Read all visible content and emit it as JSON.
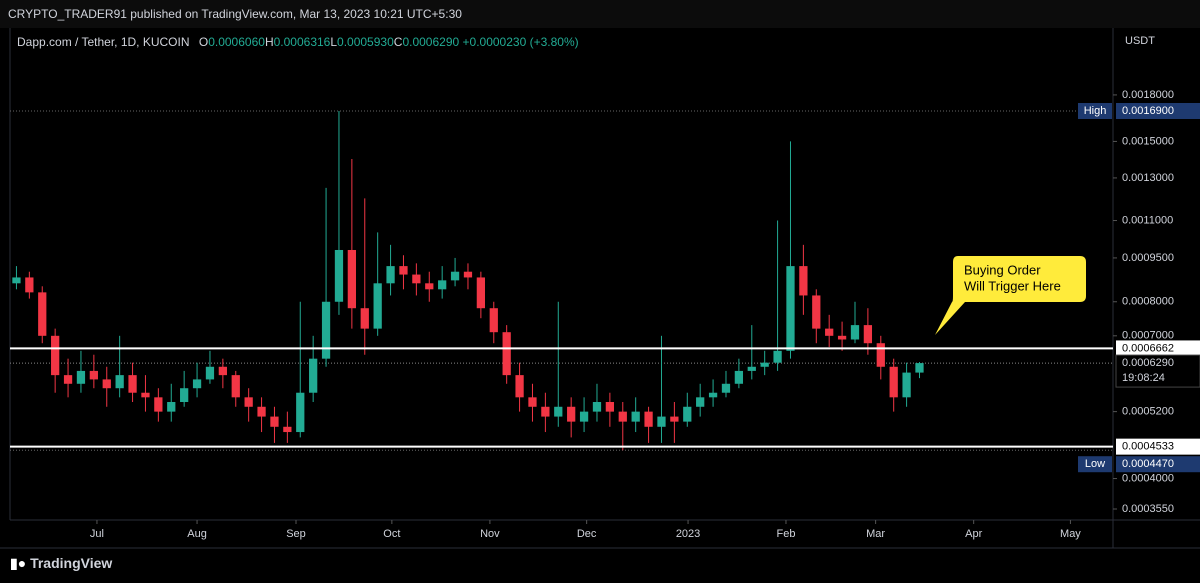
{
  "header": {
    "author_line": "CRYPTO_TRADER91 published on TradingView.com, Mar 13, 2023 10:21 UTC+5:30",
    "symbol": "Dapp.com / Tether, 1D, KUCOIN",
    "ohlc": [
      {
        "key": "O",
        "text": "0.0006060"
      },
      {
        "key": "H",
        "text": "0.0006316"
      },
      {
        "key": "L",
        "text": "0.0005930"
      },
      {
        "key": "C",
        "text": "0.0006290"
      }
    ],
    "change": "+0.0000230 (+3.80%)"
  },
  "footer": {
    "brand": "TradingView"
  },
  "chart_data": {
    "type": "candlestick",
    "y_unit": "USDT",
    "log_scale": true,
    "grid": false,
    "up_color": "#22ab94",
    "down_color": "#f23645",
    "open": [
      0.00086,
      0.00088,
      0.00083,
      0.0007,
      0.0006,
      0.00058,
      0.00061,
      0.00059,
      0.00057,
      0.0006,
      0.00056,
      0.00055,
      0.00052,
      0.00054,
      0.00057,
      0.00059,
      0.00062,
      0.0006,
      0.00055,
      0.00053,
      0.00051,
      0.00049,
      0.00048,
      0.00056,
      0.00064,
      0.0008,
      0.00098,
      0.00078,
      0.00072,
      0.00086,
      0.00092,
      0.00089,
      0.00086,
      0.00084,
      0.00087,
      0.0009,
      0.00088,
      0.00078,
      0.00071,
      0.0006,
      0.00055,
      0.00053,
      0.00051,
      0.00053,
      0.0005,
      0.00052,
      0.00054,
      0.00052,
      0.0005,
      0.00052,
      0.00049,
      0.00051,
      0.0005,
      0.00053,
      0.00055,
      0.00056,
      0.00058,
      0.00061,
      0.00062,
      0.00063,
      0.00066,
      0.00092,
      0.00082,
      0.00072,
      0.0007,
      0.00069,
      0.00073,
      0.00068,
      0.00062,
      0.00055,
      0.000606
    ],
    "high": [
      0.00092,
      0.0009,
      0.00085,
      0.00072,
      0.00064,
      0.00066,
      0.00065,
      0.00062,
      0.0007,
      0.00063,
      0.0006,
      0.00057,
      0.00058,
      0.00061,
      0.00063,
      0.00066,
      0.00064,
      0.00061,
      0.00057,
      0.00055,
      0.00053,
      0.00052,
      0.0008,
      0.0007,
      0.00125,
      0.00169,
      0.0014,
      0.0012,
      0.00105,
      0.001,
      0.00096,
      0.00093,
      0.0009,
      0.00092,
      0.00095,
      0.00093,
      0.0009,
      0.0008,
      0.00073,
      0.00063,
      0.00058,
      0.00056,
      0.0008,
      0.00055,
      0.00055,
      0.00058,
      0.00056,
      0.00054,
      0.00055,
      0.00053,
      0.0007,
      0.00054,
      0.00056,
      0.00058,
      0.00059,
      0.00061,
      0.00064,
      0.00073,
      0.00066,
      0.0011,
      0.0015,
      0.001,
      0.00084,
      0.00076,
      0.00074,
      0.0008,
      0.00078,
      0.0007,
      0.00064,
      0.00063,
      0.0006316
    ],
    "low": [
      0.00084,
      0.00081,
      0.00068,
      0.00056,
      0.00055,
      0.00056,
      0.00057,
      0.00053,
      0.00055,
      0.00054,
      0.00052,
      0.0005,
      0.0005,
      0.00053,
      0.00055,
      0.00058,
      0.00057,
      0.00053,
      0.0005,
      0.00048,
      0.00046,
      0.00046,
      0.00047,
      0.00054,
      0.00062,
      0.00076,
      0.00072,
      0.00065,
      0.0007,
      0.00082,
      0.00084,
      0.00082,
      0.0008,
      0.00081,
      0.00085,
      0.00084,
      0.00075,
      0.00068,
      0.00058,
      0.00052,
      0.0005,
      0.00048,
      0.00049,
      0.00047,
      0.00048,
      0.0005,
      0.00049,
      0.000447,
      0.00048,
      0.00046,
      0.00046,
      0.00046,
      0.00049,
      0.00051,
      0.00053,
      0.00055,
      0.00057,
      0.00059,
      0.0006,
      0.00061,
      0.00064,
      0.00076,
      0.00068,
      0.00067,
      0.00066,
      0.00068,
      0.00065,
      0.00059,
      0.00052,
      0.00053,
      0.000593
    ],
    "close": [
      0.00088,
      0.00083,
      0.0007,
      0.0006,
      0.00058,
      0.00061,
      0.00059,
      0.00057,
      0.0006,
      0.00056,
      0.00055,
      0.00052,
      0.00054,
      0.00057,
      0.00059,
      0.00062,
      0.0006,
      0.00055,
      0.00053,
      0.00051,
      0.00049,
      0.00048,
      0.00056,
      0.00064,
      0.0008,
      0.00098,
      0.00078,
      0.00072,
      0.00086,
      0.00092,
      0.00089,
      0.00086,
      0.00084,
      0.00087,
      0.0009,
      0.00088,
      0.00078,
      0.00071,
      0.0006,
      0.00055,
      0.00053,
      0.00051,
      0.00053,
      0.0005,
      0.00052,
      0.00054,
      0.00052,
      0.0005,
      0.00052,
      0.00049,
      0.00051,
      0.0005,
      0.00053,
      0.00055,
      0.00056,
      0.00058,
      0.00061,
      0.00062,
      0.00063,
      0.00066,
      0.00092,
      0.00082,
      0.00072,
      0.0007,
      0.00069,
      0.00073,
      0.00068,
      0.00062,
      0.00055,
      0.000606,
      0.000629
    ],
    "xlim": [
      -0.5,
      85
    ],
    "xticks": [
      {
        "value": 6.24,
        "label": "Jul"
      },
      {
        "value": 14.0,
        "label": "Aug"
      },
      {
        "value": 21.67,
        "label": "Sep"
      },
      {
        "value": 29.1,
        "label": "Oct"
      },
      {
        "value": 36.7,
        "label": "Nov"
      },
      {
        "value": 44.2,
        "label": "Dec"
      },
      {
        "value": 52.06,
        "label": "2023"
      },
      {
        "value": 59.65,
        "label": "Feb"
      },
      {
        "value": 66.6,
        "label": "Mar"
      },
      {
        "value": 74.2,
        "label": "Apr"
      },
      {
        "value": 81.7,
        "label": "May"
      }
    ],
    "ylim": [
      0.00034,
      0.00234
    ],
    "yticks": [
      {
        "value": 0.0018,
        "label": "0.0018000"
      },
      {
        "value": 0.0015,
        "label": "0.0015000"
      },
      {
        "value": 0.0013,
        "label": "0.0013000"
      },
      {
        "value": 0.0011,
        "label": "0.0011000"
      },
      {
        "value": 0.00095,
        "label": "0.0009500"
      },
      {
        "value": 0.0008,
        "label": "0.0008000"
      },
      {
        "value": 0.0007,
        "label": "0.0007000"
      },
      {
        "value": 0.00052,
        "label": "0.0005200"
      },
      {
        "value": 0.0004,
        "label": "0.0004000"
      },
      {
        "value": 0.000355,
        "label": "0.0003550"
      }
    ],
    "high_marker": {
      "name": "High",
      "value": 0.00169,
      "label": "0.0016900"
    },
    "low_marker": {
      "name": "Low",
      "value": 0.000447,
      "label": "0.0004470"
    },
    "levels": [
      0.0006662,
      0.0004533
    ],
    "last_price": {
      "value": 0.000629,
      "label": "0.0006290",
      "countdown": "19:08:24"
    },
    "annotation": {
      "lines": [
        "Buying Order",
        "Will Trigger Here"
      ],
      "color": "#ffeb3b"
    }
  }
}
